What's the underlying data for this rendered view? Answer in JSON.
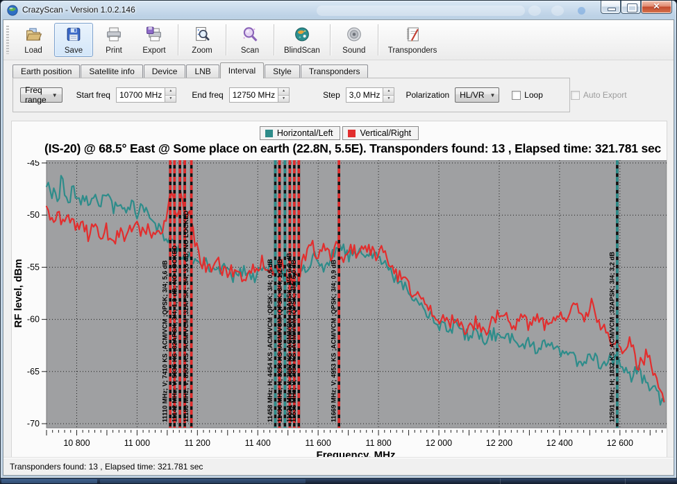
{
  "titlebar": {
    "title": "CrazyScan - Version 1.0.2.146"
  },
  "toolbar": {
    "items": [
      {
        "label": "Load",
        "icon": "open-folder-icon",
        "active": false,
        "sep_after": false
      },
      {
        "label": "Save",
        "icon": "save-floppy-icon",
        "active": true,
        "sep_after": false
      },
      {
        "label": "Print",
        "icon": "printer-icon",
        "active": false,
        "sep_after": false
      },
      {
        "label": "Export",
        "icon": "export-printer-icon",
        "active": false,
        "sep_after": true
      },
      {
        "label": "Zoom",
        "icon": "zoom-document-icon",
        "active": false,
        "sep_after": true
      },
      {
        "label": "Scan",
        "icon": "scan-magnifier-icon",
        "active": false,
        "sep_after": true
      },
      {
        "label": "BlindScan",
        "icon": "blindscan-globe-icon",
        "active": false,
        "sep_after": true
      },
      {
        "label": "Sound",
        "icon": "sound-speaker-icon",
        "active": false,
        "sep_after": true
      },
      {
        "label": "Transponders",
        "icon": "transponders-notepad-icon",
        "active": false,
        "sep_after": false
      }
    ]
  },
  "tabs": {
    "active_index": 4,
    "items": [
      "Earth position",
      "Satellite info",
      "Device",
      "LNB",
      "Interval",
      "Style",
      "Transponders"
    ]
  },
  "interval_tab": {
    "freq_range": {
      "value": "Freq range"
    },
    "start_freq": {
      "label": "Start freq",
      "value": "10700 MHz"
    },
    "end_freq": {
      "label": "End freq",
      "value": "12750 MHz"
    },
    "step": {
      "label": "Step",
      "value": "3,0 MHz"
    },
    "polarization": {
      "label": "Polarization",
      "value": "HL/VR"
    },
    "loop": {
      "label": "Loop",
      "checked": false
    },
    "auto_export": {
      "label": "Auto Export",
      "checked": false,
      "enabled": false
    }
  },
  "chart_data": {
    "type": "line",
    "title": "(IS-20) @ 68.5° East @ Some place on earth (22.8N, 5.5E). Transponders found: 13 , Elapsed time: 321.781 sec",
    "xlabel": "Frequency, MHz",
    "ylabel": "RF level, dBm",
    "xlim": [
      10700,
      12750
    ],
    "ylim": [
      -70,
      -45
    ],
    "x_major_ticks": [
      10800,
      11000,
      11200,
      11400,
      11600,
      11800,
      12000,
      12200,
      12400,
      12600
    ],
    "x_tick_labels": [
      "10 800",
      "11 000",
      "11 200",
      "11 400",
      "11 600",
      "11 800",
      "12 000",
      "12 200",
      "12 400",
      "12 600"
    ],
    "y_ticks": [
      -45,
      -50,
      -55,
      -60,
      -65,
      -70
    ],
    "grid": "dotted black",
    "plot_bg": "#9fa0a2",
    "legend_position": "top-center",
    "series": [
      {
        "name": "Horizontal/Left",
        "color": "#2e8c8a",
        "points": [
          [
            10700,
            -46.8
          ],
          [
            10715,
            -48.6
          ],
          [
            10725,
            -47.2
          ],
          [
            10737,
            -48.9
          ],
          [
            10750,
            -46.2
          ],
          [
            10762,
            -47.9
          ],
          [
            10775,
            -48.4
          ],
          [
            10790,
            -47.4
          ],
          [
            10808,
            -48.8
          ],
          [
            10825,
            -48.0
          ],
          [
            10845,
            -49.0
          ],
          [
            10862,
            -47.8
          ],
          [
            10880,
            -48.9
          ],
          [
            10900,
            -48.3
          ],
          [
            10920,
            -49.3
          ],
          [
            10940,
            -48.6
          ],
          [
            10960,
            -49.6
          ],
          [
            10980,
            -48.9
          ],
          [
            11000,
            -49.8
          ],
          [
            11020,
            -49.2
          ],
          [
            11040,
            -50.2
          ],
          [
            11060,
            -50.9
          ],
          [
            11080,
            -51.8
          ],
          [
            11100,
            -52.3
          ],
          [
            11125,
            -53.1
          ],
          [
            11150,
            -53.8
          ],
          [
            11175,
            -54.3
          ],
          [
            11200,
            -55.0
          ],
          [
            11230,
            -54.6
          ],
          [
            11260,
            -55.6
          ],
          [
            11290,
            -55.0
          ],
          [
            11320,
            -55.9
          ],
          [
            11350,
            -55.3
          ],
          [
            11380,
            -56.1
          ],
          [
            11410,
            -55.5
          ],
          [
            11440,
            -54.6
          ],
          [
            11455,
            -55.8
          ],
          [
            11470,
            -54.9
          ],
          [
            11490,
            -56.3
          ],
          [
            11510,
            -57.3
          ],
          [
            11530,
            -56.2
          ],
          [
            11560,
            -55.1
          ],
          [
            11590,
            -54.0
          ],
          [
            11620,
            -54.9
          ],
          [
            11650,
            -53.9
          ],
          [
            11680,
            -53.1
          ],
          [
            11700,
            -54.0
          ],
          [
            11730,
            -53.2
          ],
          [
            11760,
            -54.1
          ],
          [
            11790,
            -53.6
          ],
          [
            11820,
            -54.7
          ],
          [
            11850,
            -55.9
          ],
          [
            11880,
            -56.8
          ],
          [
            11910,
            -57.6
          ],
          [
            11940,
            -58.7
          ],
          [
            11970,
            -59.6
          ],
          [
            12000,
            -60.4
          ],
          [
            12030,
            -61.0
          ],
          [
            12060,
            -60.5
          ],
          [
            12090,
            -61.6
          ],
          [
            12120,
            -61.0
          ],
          [
            12150,
            -62.1
          ],
          [
            12180,
            -61.3
          ],
          [
            12210,
            -62.3
          ],
          [
            12240,
            -61.6
          ],
          [
            12270,
            -62.6
          ],
          [
            12300,
            -61.9
          ],
          [
            12330,
            -63.0
          ],
          [
            12360,
            -62.2
          ],
          [
            12390,
            -63.2
          ],
          [
            12420,
            -62.6
          ],
          [
            12450,
            -63.7
          ],
          [
            12480,
            -64.3
          ],
          [
            12510,
            -63.4
          ],
          [
            12540,
            -64.6
          ],
          [
            12570,
            -63.8
          ],
          [
            12600,
            -64.2
          ],
          [
            12630,
            -65.6
          ],
          [
            12660,
            -64.8
          ],
          [
            12690,
            -66.3
          ],
          [
            12720,
            -67.0
          ],
          [
            12750,
            -68.2
          ]
        ]
      },
      {
        "name": "Vertical/Right",
        "color": "#e22e2e",
        "points": [
          [
            10700,
            -49.6
          ],
          [
            10720,
            -50.8
          ],
          [
            10740,
            -49.9
          ],
          [
            10760,
            -51.2
          ],
          [
            10780,
            -50.3
          ],
          [
            10800,
            -51.6
          ],
          [
            10820,
            -50.7
          ],
          [
            10840,
            -52.0
          ],
          [
            10860,
            -51.1
          ],
          [
            10880,
            -52.4
          ],
          [
            10900,
            -51.4
          ],
          [
            10920,
            -52.6
          ],
          [
            10940,
            -51.7
          ],
          [
            10960,
            -52.2
          ],
          [
            10980,
            -51.3
          ],
          [
            11000,
            -50.9
          ],
          [
            11020,
            -51.9
          ],
          [
            11040,
            -51.2
          ],
          [
            11060,
            -52.3
          ],
          [
            11080,
            -51.5
          ],
          [
            11100,
            -49.4
          ],
          [
            11115,
            -47.6
          ],
          [
            11130,
            -50.2
          ],
          [
            11145,
            -48.1
          ],
          [
            11160,
            -50.9
          ],
          [
            11175,
            -49.3
          ],
          [
            11190,
            -52.4
          ],
          [
            11210,
            -54.2
          ],
          [
            11240,
            -55.4
          ],
          [
            11270,
            -54.8
          ],
          [
            11300,
            -55.8
          ],
          [
            11330,
            -55.1
          ],
          [
            11360,
            -56.0
          ],
          [
            11390,
            -55.3
          ],
          [
            11420,
            -54.4
          ],
          [
            11450,
            -55.6
          ],
          [
            11480,
            -54.7
          ],
          [
            11510,
            -56.5
          ],
          [
            11540,
            -55.4
          ],
          [
            11560,
            -53.9
          ],
          [
            11580,
            -52.9
          ],
          [
            11600,
            -53.8
          ],
          [
            11620,
            -52.8
          ],
          [
            11640,
            -53.9
          ],
          [
            11660,
            -52.7
          ],
          [
            11680,
            -54.1
          ],
          [
            11700,
            -53.0
          ],
          [
            11730,
            -53.9
          ],
          [
            11760,
            -53.1
          ],
          [
            11790,
            -54.0
          ],
          [
            11820,
            -53.4
          ],
          [
            11850,
            -55.2
          ],
          [
            11880,
            -56.3
          ],
          [
            11910,
            -57.2
          ],
          [
            11940,
            -58.2
          ],
          [
            11970,
            -59.1
          ],
          [
            12000,
            -59.9
          ],
          [
            12030,
            -60.6
          ],
          [
            12060,
            -59.9
          ],
          [
            12090,
            -61.0
          ],
          [
            12120,
            -60.2
          ],
          [
            12150,
            -61.2
          ],
          [
            12180,
            -60.1
          ],
          [
            12210,
            -59.4
          ],
          [
            12240,
            -60.8
          ],
          [
            12270,
            -59.8
          ],
          [
            12300,
            -60.9
          ],
          [
            12330,
            -59.6
          ],
          [
            12360,
            -60.7
          ],
          [
            12390,
            -59.5
          ],
          [
            12420,
            -60.3
          ],
          [
            12450,
            -58.9
          ],
          [
            12480,
            -59.7
          ],
          [
            12510,
            -58.4
          ],
          [
            12540,
            -60.9
          ],
          [
            12570,
            -62.0
          ],
          [
            12600,
            -63.1
          ],
          [
            12630,
            -62.2
          ],
          [
            12660,
            -64.3
          ],
          [
            12690,
            -63.4
          ],
          [
            12720,
            -66.0
          ],
          [
            12750,
            -68.6
          ]
        ]
      }
    ],
    "transponder_markers": [
      {
        "freq": 11110,
        "series": "V",
        "label": "11110 MHz; V; 7410 KS ;ACM/VCM ;QPSK; 3/4; 5,6 dB"
      },
      {
        "freq": 11124,
        "series": "V",
        "label": ""
      },
      {
        "freq": 11142,
        "series": "V",
        "label": "11142 MHz; V; 5935 KS ;32APSK; 3/4; 1,3 dB; NO LOCKED"
      },
      {
        "freq": 11158,
        "series": "V",
        "label": ""
      },
      {
        "freq": 11180,
        "series": "V",
        "label": "11180 MHz; V; 8903 KS ;ACM/VCM ;32APSK; 3/4; 3,6 dB; NO LOCKED"
      },
      {
        "freq": 11458,
        "series": "H",
        "label": "11458 MHz; H; 4454 KS ;ACM/VCM ;QPSK; 3/4; 0,6 dB"
      },
      {
        "freq": 11472,
        "series": "V",
        "label": ""
      },
      {
        "freq": 11490,
        "series": "H",
        "label": "11490 MHz; H; 3253 KS ;ACM/VCM ;QPSK; 3/4; 1,2 dB"
      },
      {
        "freq": 11506,
        "series": "V",
        "label": ""
      },
      {
        "freq": 11521,
        "series": "V",
        "label": "11521 MHz; V; 3887 KS ;ACM/VCM ;32APSK; 3/4; 6,9 dB"
      },
      {
        "freq": 11536,
        "series": "V",
        "label": "11536 MHz; V; 3990 KS ;ACM/VCM ;QPSK; 3/4; 6,0 dB"
      },
      {
        "freq": 11669,
        "series": "V",
        "label": "11669 MHz; V; 4953 KS ;ACM/VCM ;QPSK; 3/4; 0,9 dB"
      },
      {
        "freq": 12591,
        "series": "H",
        "label": "12591 MHz; H; 1832 KS ;ACM/VCM ;32APSK; 3/4; 3,2 dB"
      }
    ]
  },
  "statusbar": {
    "text": "Transponders found: 13 , Elapsed time: 321.781 sec"
  }
}
